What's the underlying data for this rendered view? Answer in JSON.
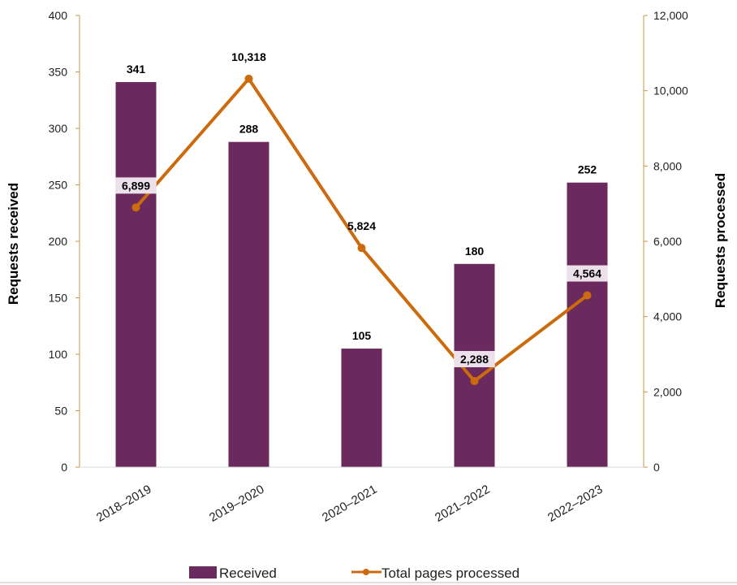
{
  "chart_data": {
    "type": "bar",
    "categories": [
      "2018–2019",
      "2019–2020",
      "2020–2021",
      "2021–2022",
      "2022–2023"
    ],
    "series": [
      {
        "name": "Received",
        "type": "bar",
        "axis": "left",
        "values": [
          341,
          288,
          105,
          180,
          252
        ],
        "labels": [
          "341",
          "288",
          "105",
          "180",
          "252"
        ],
        "color": "#6b2a5e"
      },
      {
        "name": "Total pages processed",
        "type": "line",
        "axis": "right",
        "values": [
          6899,
          10318,
          5824,
          2288,
          4564
        ],
        "labels": [
          "6,899",
          "10,318",
          "5,824",
          "2,288",
          "4,564"
        ],
        "color": "#cc6a0e"
      }
    ],
    "ylabel": "Requests received",
    "y2label": "Requests processed",
    "ylim": [
      0,
      400
    ],
    "y2lim": [
      0,
      12000
    ],
    "yticks": [
      "0",
      "50",
      "100",
      "150",
      "200",
      "250",
      "300",
      "350",
      "400"
    ],
    "y2ticks": [
      "0",
      "2,000",
      "4,000",
      "6,000",
      "8,000",
      "10,000",
      "12,000"
    ],
    "grid": false,
    "legend_position": "bottom",
    "axis_color": "#c8964b"
  }
}
